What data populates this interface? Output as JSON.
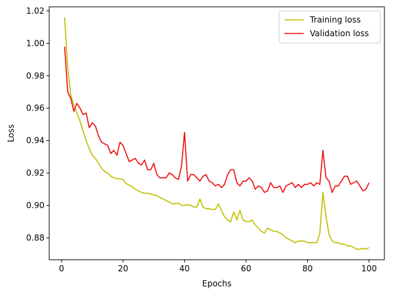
{
  "chart_data": {
    "type": "line",
    "title": "",
    "xlabel": "Epochs",
    "ylabel": "Loss",
    "xlim": [
      -4,
      105
    ],
    "ylim": [
      0.8665,
      1.0225
    ],
    "xticks": [
      0,
      20,
      40,
      60,
      80,
      100
    ],
    "yticks": [
      0.88,
      0.9,
      0.92,
      0.94,
      0.96,
      0.98,
      1.0,
      1.02
    ],
    "ytick_labels": [
      "0.88",
      "0.90",
      "0.92",
      "0.94",
      "0.96",
      "0.98",
      "1.00",
      "1.02"
    ],
    "grid": false,
    "legend_position": "upper right",
    "x": [
      1,
      2,
      3,
      4,
      5,
      6,
      7,
      8,
      9,
      10,
      11,
      12,
      13,
      14,
      15,
      16,
      17,
      18,
      19,
      20,
      21,
      22,
      23,
      24,
      25,
      26,
      27,
      28,
      29,
      30,
      31,
      32,
      33,
      34,
      35,
      36,
      37,
      38,
      39,
      40,
      41,
      42,
      43,
      44,
      45,
      46,
      47,
      48,
      49,
      50,
      51,
      52,
      53,
      54,
      55,
      56,
      57,
      58,
      59,
      60,
      61,
      62,
      63,
      64,
      65,
      66,
      67,
      68,
      69,
      70,
      71,
      72,
      73,
      74,
      75,
      76,
      77,
      78,
      79,
      80,
      81,
      82,
      83,
      84,
      85,
      86,
      87,
      88,
      89,
      90,
      91,
      92,
      93,
      94,
      95,
      96,
      97,
      98,
      99,
      100
    ],
    "series": [
      {
        "name": "Training loss",
        "color": "#bfbf00",
        "values": [
          1.016,
          0.985,
          0.968,
          0.962,
          0.957,
          0.952,
          0.946,
          0.94,
          0.935,
          0.931,
          0.929,
          0.926,
          0.923,
          0.921,
          0.92,
          0.918,
          0.917,
          0.9165,
          0.9165,
          0.916,
          0.9135,
          0.9125,
          0.9115,
          0.91,
          0.909,
          0.908,
          0.9075,
          0.9075,
          0.907,
          0.9065,
          0.906,
          0.905,
          0.904,
          0.903,
          0.902,
          0.901,
          0.901,
          0.9015,
          0.9,
          0.9,
          0.9005,
          0.9,
          0.899,
          0.899,
          0.904,
          0.899,
          0.898,
          0.898,
          0.8975,
          0.8975,
          0.901,
          0.897,
          0.893,
          0.891,
          0.89,
          0.896,
          0.891,
          0.897,
          0.891,
          0.89,
          0.89,
          0.891,
          0.888,
          0.886,
          0.884,
          0.883,
          0.886,
          0.885,
          0.884,
          0.884,
          0.883,
          0.882,
          0.88,
          0.879,
          0.878,
          0.877,
          0.878,
          0.878,
          0.878,
          0.877,
          0.877,
          0.877,
          0.877,
          0.883,
          0.908,
          0.893,
          0.882,
          0.878,
          0.877,
          0.877,
          0.876,
          0.876,
          0.875,
          0.875,
          0.874,
          0.873,
          0.873,
          0.8735,
          0.873,
          0.874
        ]
      },
      {
        "name": "Validation loss",
        "color": "#ee1111",
        "values": [
          0.998,
          0.97,
          0.966,
          0.958,
          0.963,
          0.96,
          0.956,
          0.957,
          0.948,
          0.951,
          0.949,
          0.943,
          0.939,
          0.938,
          0.937,
          0.932,
          0.934,
          0.931,
          0.939,
          0.937,
          0.932,
          0.927,
          0.928,
          0.929,
          0.926,
          0.925,
          0.928,
          0.922,
          0.922,
          0.926,
          0.919,
          0.917,
          0.917,
          0.917,
          0.92,
          0.919,
          0.917,
          0.916,
          0.924,
          0.945,
          0.915,
          0.919,
          0.919,
          0.917,
          0.915,
          0.918,
          0.919,
          0.915,
          0.914,
          0.912,
          0.913,
          0.911,
          0.913,
          0.919,
          0.922,
          0.922,
          0.914,
          0.912,
          0.915,
          0.915,
          0.917,
          0.915,
          0.91,
          0.912,
          0.911,
          0.908,
          0.909,
          0.914,
          0.911,
          0.911,
          0.912,
          0.908,
          0.912,
          0.913,
          0.914,
          0.911,
          0.913,
          0.911,
          0.913,
          0.913,
          0.914,
          0.912,
          0.914,
          0.913,
          0.934,
          0.917,
          0.915,
          0.908,
          0.912,
          0.912,
          0.915,
          0.918,
          0.918,
          0.913,
          0.914,
          0.915,
          0.912,
          0.909,
          0.91,
          0.914
        ]
      }
    ]
  }
}
